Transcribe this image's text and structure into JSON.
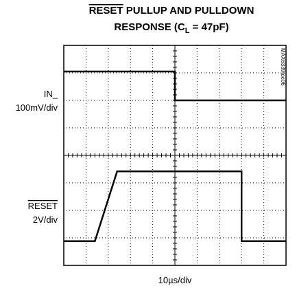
{
  "chart_data": {
    "type": "line",
    "title": {
      "overline": "RESET",
      "rest": " PULLUP AND PULLDOWN",
      "line2": "RESPONSE (C",
      "sub": "L",
      "line2_end": " = 47pF)"
    },
    "xlabel": "10µs/div",
    "watermark": "MAX6339toc06",
    "color": "#000000",
    "grid": true,
    "xlim": [
      0,
      10
    ],
    "ylim": [
      0,
      8
    ],
    "xticks": [
      0,
      1,
      2,
      3,
      4,
      5,
      6,
      7,
      8,
      9,
      10
    ],
    "yticks": [
      0,
      1,
      2,
      3,
      4,
      5,
      6,
      7,
      8
    ],
    "series": [
      {
        "name": "IN_",
        "scale": "100mV/div",
        "x": [
          0,
          5,
          5,
          10
        ],
        "values": [
          7.05,
          7.05,
          6.0,
          6.0
        ]
      },
      {
        "name": "RESET",
        "scale": "2V/div",
        "x": [
          0,
          1.4,
          2.4,
          8.0,
          8.0,
          10
        ],
        "values": [
          0.88,
          0.88,
          3.42,
          3.42,
          0.88,
          0.88
        ]
      }
    ]
  }
}
